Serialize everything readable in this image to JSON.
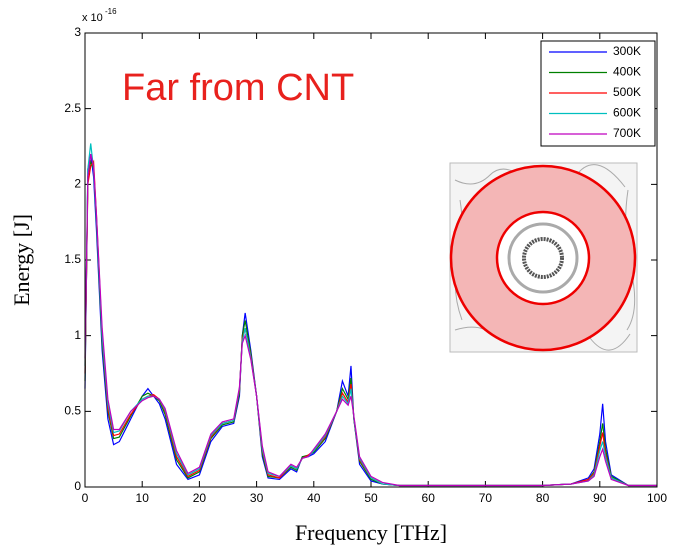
{
  "chart_data": {
    "type": "line",
    "annotation": "Far from CNT",
    "y_scale_base": "x 10",
    "y_scale_exponent": "-16",
    "xlabel": "Frequency [THz]",
    "ylabel": "Energy [J]",
    "xlim": [
      0,
      100
    ],
    "xticks": [
      0,
      10,
      20,
      30,
      40,
      50,
      60,
      70,
      80,
      90,
      100
    ],
    "ylim": [
      0,
      3
    ],
    "yticks": [
      0,
      0.5,
      1,
      1.5,
      2,
      2.5,
      3
    ],
    "grid": false,
    "legend": "upper right",
    "x": [
      0,
      0.5,
      1,
      1.5,
      2,
      3,
      4,
      5,
      6,
      8,
      10,
      11,
      12,
      13,
      14,
      16,
      18,
      20,
      22,
      24,
      26,
      27,
      27.5,
      28,
      29,
      30,
      31,
      32,
      34,
      36,
      37,
      38,
      39,
      40,
      42,
      44,
      45,
      46,
      46.5,
      47,
      48,
      50,
      52,
      55,
      60,
      70,
      80,
      85,
      88,
      89,
      90,
      90.5,
      91,
      92,
      95,
      100
    ],
    "series": [
      {
        "name": "300K",
        "color": "#0000ff",
        "values": [
          0.65,
          2.1,
          2.2,
          2.05,
          1.7,
          0.9,
          0.45,
          0.28,
          0.3,
          0.45,
          0.6,
          0.65,
          0.6,
          0.55,
          0.45,
          0.15,
          0.05,
          0.08,
          0.3,
          0.4,
          0.42,
          0.6,
          1.0,
          1.15,
          0.9,
          0.6,
          0.2,
          0.06,
          0.05,
          0.12,
          0.1,
          0.2,
          0.2,
          0.22,
          0.3,
          0.5,
          0.7,
          0.6,
          0.8,
          0.45,
          0.15,
          0.04,
          0.02,
          0.01,
          0.01,
          0.01,
          0.01,
          0.02,
          0.06,
          0.12,
          0.35,
          0.55,
          0.3,
          0.08,
          0.01,
          0.01
        ]
      },
      {
        "name": "400K",
        "color": "#008000",
        "values": [
          0.7,
          2.05,
          2.15,
          2.1,
          1.75,
          0.95,
          0.5,
          0.32,
          0.33,
          0.47,
          0.6,
          0.62,
          0.6,
          0.57,
          0.48,
          0.18,
          0.06,
          0.1,
          0.32,
          0.41,
          0.43,
          0.62,
          1.0,
          1.1,
          0.88,
          0.6,
          0.22,
          0.07,
          0.06,
          0.13,
          0.11,
          0.2,
          0.21,
          0.23,
          0.32,
          0.5,
          0.65,
          0.58,
          0.72,
          0.45,
          0.17,
          0.05,
          0.02,
          0.01,
          0.01,
          0.01,
          0.01,
          0.02,
          0.05,
          0.1,
          0.3,
          0.42,
          0.25,
          0.07,
          0.01,
          0.01
        ]
      },
      {
        "name": "500K",
        "color": "#ff0000",
        "values": [
          0.75,
          2.0,
          2.12,
          2.15,
          1.8,
          1.0,
          0.52,
          0.34,
          0.35,
          0.48,
          0.58,
          0.6,
          0.61,
          0.58,
          0.5,
          0.2,
          0.07,
          0.11,
          0.33,
          0.42,
          0.44,
          0.64,
          0.98,
          1.05,
          0.86,
          0.6,
          0.24,
          0.08,
          0.06,
          0.14,
          0.12,
          0.19,
          0.21,
          0.24,
          0.33,
          0.5,
          0.62,
          0.56,
          0.68,
          0.46,
          0.18,
          0.06,
          0.02,
          0.01,
          0.01,
          0.01,
          0.01,
          0.02,
          0.05,
          0.09,
          0.27,
          0.36,
          0.22,
          0.06,
          0.01,
          0.01
        ]
      },
      {
        "name": "600K",
        "color": "#00bfbf",
        "values": [
          0.8,
          2.1,
          2.27,
          2.1,
          1.78,
          1.0,
          0.55,
          0.36,
          0.37,
          0.5,
          0.58,
          0.6,
          0.6,
          0.58,
          0.51,
          0.22,
          0.08,
          0.12,
          0.34,
          0.42,
          0.44,
          0.65,
          0.96,
          1.05,
          0.85,
          0.6,
          0.25,
          0.09,
          0.07,
          0.14,
          0.12,
          0.19,
          0.2,
          0.24,
          0.34,
          0.5,
          0.6,
          0.55,
          0.65,
          0.46,
          0.19,
          0.06,
          0.02,
          0.01,
          0.01,
          0.01,
          0.01,
          0.02,
          0.04,
          0.08,
          0.24,
          0.3,
          0.2,
          0.06,
          0.01,
          0.01
        ]
      },
      {
        "name": "700K",
        "color": "#bf00bf",
        "values": [
          0.85,
          2.05,
          2.2,
          2.12,
          1.8,
          1.05,
          0.58,
          0.38,
          0.38,
          0.5,
          0.57,
          0.59,
          0.6,
          0.58,
          0.52,
          0.24,
          0.09,
          0.13,
          0.35,
          0.43,
          0.45,
          0.66,
          0.95,
          1.0,
          0.84,
          0.6,
          0.27,
          0.1,
          0.07,
          0.15,
          0.13,
          0.19,
          0.2,
          0.25,
          0.35,
          0.5,
          0.58,
          0.54,
          0.6,
          0.47,
          0.2,
          0.07,
          0.03,
          0.01,
          0.01,
          0.01,
          0.01,
          0.02,
          0.04,
          0.07,
          0.2,
          0.25,
          0.17,
          0.05,
          0.01,
          0.01
        ]
      }
    ]
  }
}
